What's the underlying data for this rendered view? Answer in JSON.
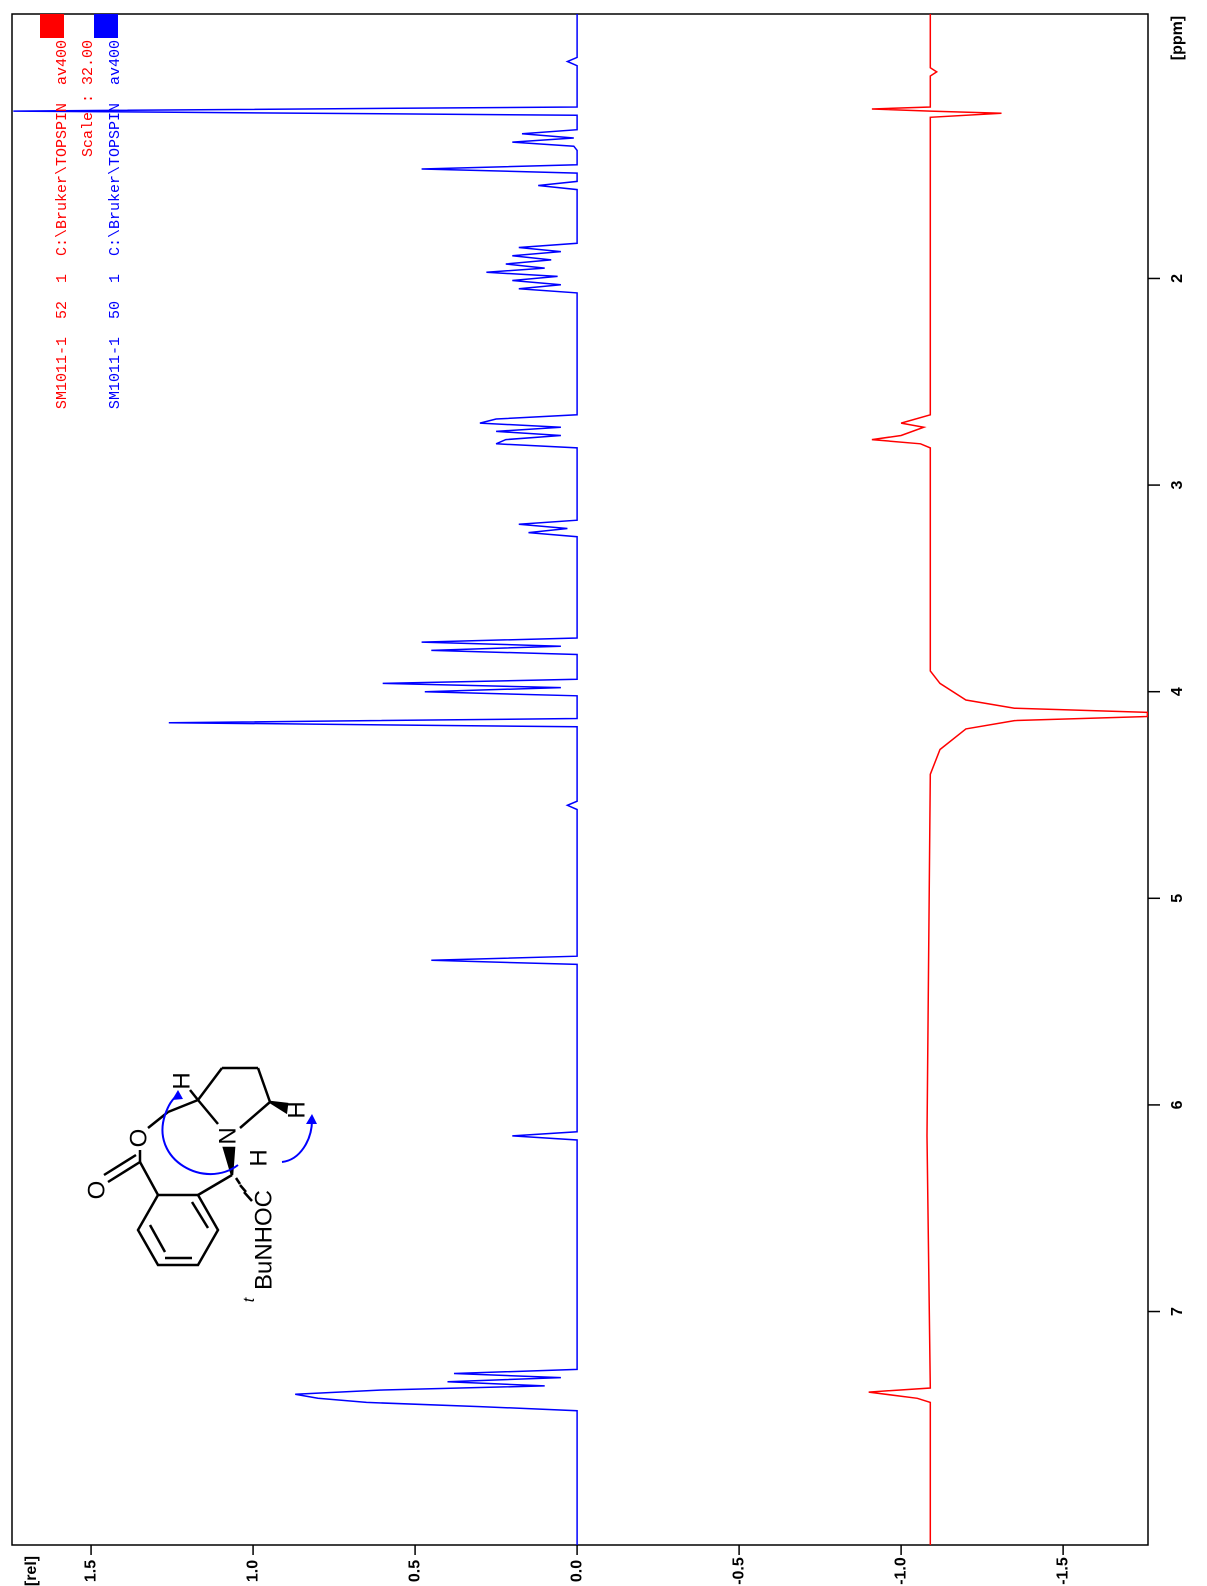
{
  "chart_data": {
    "type": "line",
    "orientation": "vertical",
    "x_label": "[ppm]",
    "y_label": "[rel]",
    "xlim": [
      0.72,
      8.13
    ],
    "xticks": [
      2,
      3,
      4,
      5,
      6,
      7
    ],
    "ylim": [
      1.744,
      -1.762
    ],
    "yticks": [
      1.5,
      {
        "value": 1.0,
        "label": "1.0"
      },
      0.5,
      {
        "value": 0.0,
        "label": "0.0"
      },
      -0.5,
      {
        "value": -1.0,
        "label": "-1.0"
      },
      -1.5
    ],
    "scale_label": "Scale : 32.00",
    "annotations": [
      "O",
      "O",
      "N",
      "H",
      "H",
      "H",
      "t",
      "BuNHOC"
    ],
    "series": [
      {
        "name": "SM1011-1  52  1  C:\\Bruker\\TOPSPIN  av400",
        "color": "#ff0000",
        "x": [
          0.72,
          0.98,
          1.0,
          1.02,
          1.17,
          1.18,
          1.19,
          1.2,
          1.22,
          2.66,
          2.7,
          2.72,
          2.76,
          2.78,
          2.8,
          2.82,
          3.9,
          3.96,
          4.04,
          4.08,
          4.1,
          4.12,
          4.14,
          4.18,
          4.28,
          4.4,
          6.15,
          7.37,
          7.39,
          7.42,
          7.44,
          8.13
        ],
        "values": [
          -1.09,
          -1.09,
          -1.11,
          -1.09,
          -1.09,
          -0.91,
          -1.09,
          -1.31,
          -1.09,
          -1.09,
          -1.0,
          -1.07,
          -1.0,
          -0.91,
          -1.06,
          -1.09,
          -1.09,
          -1.12,
          -1.2,
          -1.35,
          -1.76,
          -1.76,
          -1.35,
          -1.2,
          -1.12,
          -1.09,
          -1.08,
          -1.09,
          -0.9,
          -1.05,
          -1.09,
          -1.09
        ]
      },
      {
        "name": "SM1011-1  50  1  C:\\Bruker\\TOPSPIN  av400",
        "color": "#0000ff",
        "x": [
          0.72,
          0.93,
          0.95,
          0.97,
          1.17,
          1.19,
          1.21,
          1.28,
          1.3,
          1.32,
          1.34,
          1.36,
          1.38,
          1.45,
          1.47,
          1.49,
          1.53,
          1.55,
          1.57,
          1.83,
          1.85,
          1.87,
          1.89,
          1.91,
          1.93,
          1.95,
          1.97,
          1.99,
          2.01,
          2.03,
          2.05,
          2.07,
          2.66,
          2.68,
          2.7,
          2.72,
          2.74,
          2.76,
          2.78,
          2.8,
          2.82,
          3.17,
          3.19,
          3.21,
          3.23,
          3.25,
          3.74,
          3.76,
          3.78,
          3.8,
          3.82,
          3.94,
          3.96,
          3.98,
          4.0,
          4.02,
          4.13,
          4.15,
          4.17,
          4.53,
          4.55,
          4.57,
          5.28,
          5.3,
          5.32,
          6.13,
          6.15,
          6.17,
          7.28,
          7.3,
          7.32,
          7.34,
          7.36,
          7.38,
          7.4,
          7.42,
          7.44,
          7.46,
          7.48,
          8.13
        ],
        "values": [
          0,
          0,
          0.03,
          0,
          0,
          1.74,
          0,
          0,
          0.17,
          0.01,
          0.2,
          0.01,
          0,
          0,
          0.48,
          0,
          0,
          0.12,
          0,
          0,
          0.18,
          0.05,
          0.2,
          0.08,
          0.22,
          0.1,
          0.28,
          0.06,
          0.2,
          0.05,
          0.18,
          0,
          0,
          0.25,
          0.3,
          0.05,
          0.25,
          0.05,
          0.22,
          0.25,
          0,
          0,
          0.18,
          0.03,
          0.15,
          0,
          0,
          0.48,
          0.05,
          0.45,
          0,
          0,
          0.6,
          0.05,
          0.47,
          0,
          0,
          1.26,
          0,
          0,
          0.03,
          0,
          0,
          0.45,
          0,
          0,
          0.2,
          0,
          0,
          0.38,
          0.05,
          0.4,
          0.1,
          0.6,
          0.87,
          0.8,
          0.65,
          0.3,
          0,
          0
        ]
      }
    ]
  }
}
